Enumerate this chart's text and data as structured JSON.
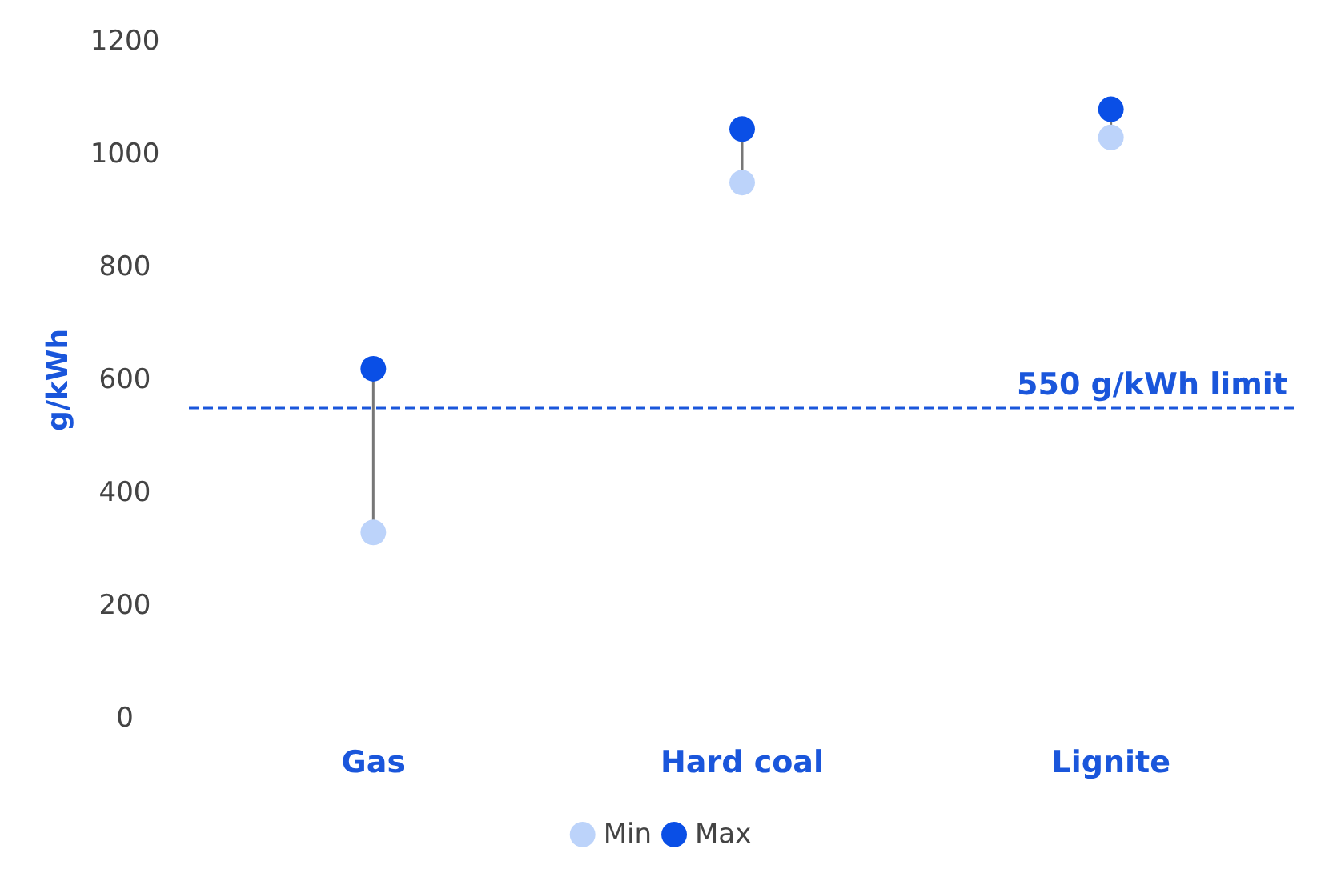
{
  "chart_data": {
    "type": "scatter",
    "ylabel": "g/kWh",
    "categories": [
      "Gas",
      "Hard coal",
      "Lignite"
    ],
    "series": [
      {
        "name": "Min",
        "color": "#bcd3fa",
        "values": [
          330,
          950,
          1030
        ]
      },
      {
        "name": "Max",
        "color": "#0a4fe6",
        "values": [
          620,
          1045,
          1080
        ]
      }
    ],
    "ylim": [
      0,
      1200
    ],
    "yticks": [
      0,
      200,
      400,
      600,
      800,
      1000,
      1200
    ],
    "ref_lines": [
      {
        "axis": "y",
        "value": 550,
        "label": "550 g/kWh limit",
        "color": "#1a56db",
        "line_style": "dashed"
      }
    ],
    "grid": false,
    "legend": "bottom",
    "marker": "circle"
  }
}
